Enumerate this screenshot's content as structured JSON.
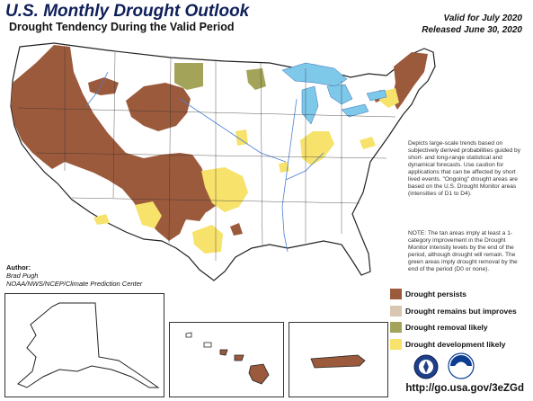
{
  "header": {
    "title": "U.S. Monthly Drought Outlook",
    "subtitle": "Drought Tendency During the Valid Period",
    "valid_for": "Valid for July 2020",
    "released": "Released June 30, 2020"
  },
  "description": "Depicts large-scale trends based on subjectively derived probabilities guided by short- and long-range statistical and dynamical forecasts. Use caution for applications that can be affected by short lived events. \"Ongoing\" drought areas are based on the U.S. Drought Monitor areas (intensities of D1 to D4).",
  "note": "NOTE: The tan areas imply at least a 1-category improvement in the Drought Monitor intensity levels by the end of the period, although drought will remain. The green areas imply drought removal by the end of the period (D0 or none).",
  "author": {
    "label": "Author:",
    "name": "Brad Pugh",
    "org": "NOAA/NWS/NCEP/Climate Prediction Center"
  },
  "legend": [
    {
      "label": "Drought persists",
      "color": "#9c5a3c"
    },
    {
      "label": "Drought remains but improves",
      "color": "#d8c6b0"
    },
    {
      "label": "Drought removal likely",
      "color": "#a3a45a"
    },
    {
      "label": "Drought development likely",
      "color": "#f7e26b"
    }
  ],
  "url": "http://go.usa.gov/3eZGd",
  "colors": {
    "persists": "#9c5a3c",
    "improves": "#d8c6b0",
    "removal": "#a3a45a",
    "development": "#f7e26b",
    "water": "#7ec8ea",
    "rivers": "#4a7fd6",
    "state_lines": "#333333",
    "title": "#0f1f5a"
  },
  "logos": [
    "noaa-nws-logo",
    "noaa-logo"
  ]
}
